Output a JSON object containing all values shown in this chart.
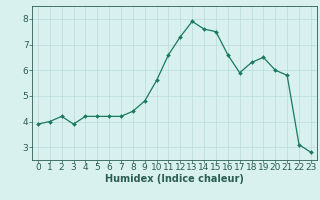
{
  "xlabel": "Humidex (Indice chaleur)",
  "ylabel": "",
  "x": [
    0,
    1,
    2,
    3,
    4,
    5,
    6,
    7,
    8,
    9,
    10,
    11,
    12,
    13,
    14,
    15,
    16,
    17,
    18,
    19,
    20,
    21,
    22,
    23
  ],
  "y": [
    3.9,
    4.0,
    4.2,
    3.9,
    4.2,
    4.2,
    4.2,
    4.2,
    4.4,
    4.8,
    5.6,
    6.6,
    7.3,
    7.9,
    7.6,
    7.5,
    6.6,
    5.9,
    6.3,
    6.5,
    6.0,
    5.8,
    3.1,
    2.8
  ],
  "line_color": "#1a7a5e",
  "marker_color": "#1a7a5e",
  "bg_color": "#d8f0ee",
  "grid_color": "#b8dcd8",
  "axis_color": "#2a5e50",
  "ylim": [
    2.5,
    8.5
  ],
  "xlim": [
    -0.5,
    23.5
  ],
  "yticks": [
    3,
    4,
    5,
    6,
    7,
    8
  ],
  "xticks": [
    0,
    1,
    2,
    3,
    4,
    5,
    6,
    7,
    8,
    9,
    10,
    11,
    12,
    13,
    14,
    15,
    16,
    17,
    18,
    19,
    20,
    21,
    22,
    23
  ],
  "label_fontsize": 7,
  "tick_fontsize": 6.5
}
